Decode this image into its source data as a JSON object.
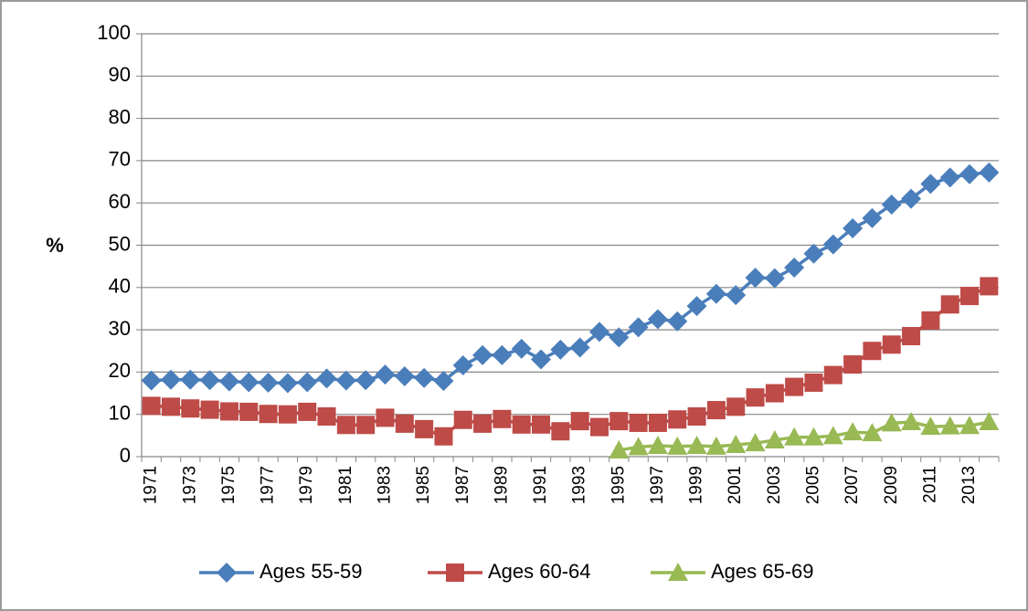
{
  "chart_data": {
    "type": "line",
    "y_label": "%",
    "categories": [
      "1971",
      null,
      "1973",
      null,
      "1975",
      null,
      "1977",
      null,
      "1979",
      null,
      "1981",
      null,
      "1983",
      null,
      "1985",
      null,
      "1987",
      null,
      "1989",
      null,
      "1991",
      null,
      "1993",
      null,
      "1995",
      null,
      "1997",
      null,
      "1999",
      null,
      "2001",
      null,
      "2003",
      null,
      "2005",
      null,
      "2007",
      null,
      "2009",
      null,
      "2011",
      null,
      "2013",
      null
    ],
    "series": [
      {
        "name": "Ages 55-59",
        "color": "#4a7ebb",
        "marker": "diamond",
        "values": [
          18,
          18.2,
          18.2,
          18.1,
          17.8,
          17.6,
          17.5,
          17.4,
          17.6,
          18.5,
          18,
          18.1,
          19.4,
          19,
          18.6,
          17.9,
          21.6,
          24,
          24,
          25.5,
          23,
          25.3,
          25.8,
          29.5,
          28.2,
          30.6,
          32.5,
          32,
          35.6,
          38.5,
          38.2,
          42.3,
          42.2,
          44.7,
          48,
          50.2,
          54,
          56.4,
          59.6,
          61,
          64.5,
          66,
          66.8,
          67.2
        ]
      },
      {
        "name": "Ages 60-64",
        "color": "#be4b48",
        "marker": "square",
        "values": [
          12,
          11.8,
          11.4,
          11.1,
          10.7,
          10.6,
          10.1,
          10,
          10.6,
          9.5,
          7.5,
          7.5,
          9.2,
          7.8,
          6.5,
          4.8,
          8.7,
          7.8,
          8.9,
          7.6,
          7.6,
          6,
          8.4,
          7,
          8.4,
          8,
          8,
          8.8,
          9.5,
          11,
          11.8,
          14,
          15,
          16.5,
          17.5,
          19.3,
          21.8,
          25,
          26.5,
          28.5,
          32.2,
          36,
          38,
          40.3
        ]
      },
      {
        "name": "Ages 65-69",
        "color": "#98b954",
        "marker": "triangle",
        "values": [
          null,
          null,
          null,
          null,
          null,
          null,
          null,
          null,
          null,
          null,
          null,
          null,
          null,
          null,
          null,
          null,
          null,
          null,
          null,
          null,
          null,
          null,
          null,
          null,
          1.5,
          2.3,
          2.6,
          2.4,
          2.6,
          2.4,
          2.8,
          3.2,
          3.9,
          4.6,
          4.6,
          4.9,
          5.8,
          5.6,
          7.9,
          8.2,
          7.1,
          7.2,
          7.3,
          8.2
        ]
      }
    ],
    "ylim": [
      0,
      100
    ],
    "yticks": [
      0,
      10,
      20,
      30,
      40,
      50,
      60,
      70,
      80,
      90,
      100
    ],
    "grid": true,
    "legend": "bottom"
  }
}
